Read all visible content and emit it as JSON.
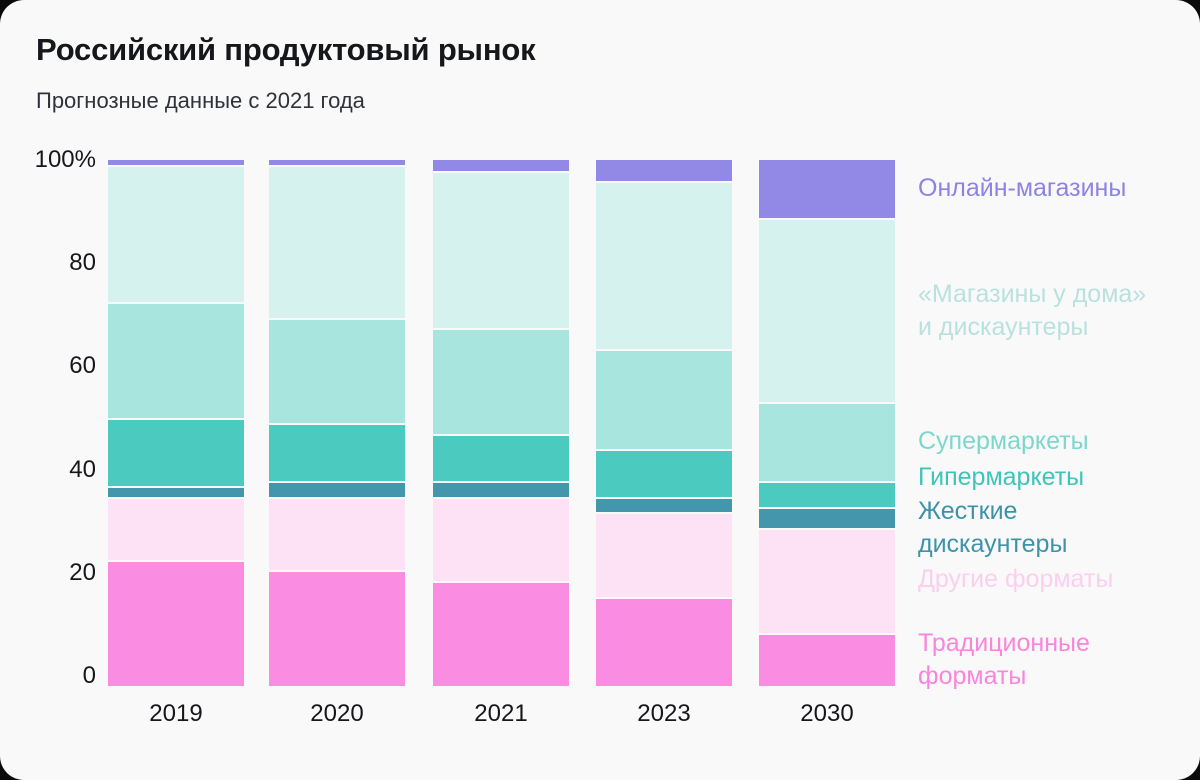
{
  "header": {
    "title": "Российский продуктовый рынок",
    "subtitle": "Прогнозные данные с 2021 года"
  },
  "chart_data": {
    "type": "bar",
    "variant": "stacked-100-percent",
    "title": "Российский продуктовый рынок",
    "subtitle": "Прогнозные данные с 2021 года",
    "categories": [
      "2019",
      "2020",
      "2021",
      "2023",
      "2030"
    ],
    "series": [
      {
        "key": "traditional-formats",
        "name": "Традиционные форматы",
        "color": "#fa8de1",
        "values": [
          24,
          22,
          20,
          17,
          10
        ]
      },
      {
        "key": "other-formats",
        "name": "Другие форматы",
        "color": "#fde2f6",
        "values": [
          12,
          14,
          16,
          16,
          20
        ]
      },
      {
        "key": "hard-discounters",
        "name": "Жесткие дискаунтеры",
        "color": "#4396ab",
        "values": [
          2,
          3,
          3,
          3,
          4
        ]
      },
      {
        "key": "hypermarkets",
        "name": "Гипермаркеты",
        "color": "#4bcbc0",
        "values": [
          13,
          11,
          9,
          9,
          5
        ]
      },
      {
        "key": "supermarkets",
        "name": "Супермаркеты",
        "color": "#a9e5df",
        "values": [
          22,
          20,
          20,
          19,
          15
        ]
      },
      {
        "key": "convenience-discounters",
        "name": "«Магазины у дома» и дискаунтеры",
        "color": "#d5f2ef",
        "values": [
          26,
          29,
          30,
          32,
          35
        ]
      },
      {
        "key": "online-stores",
        "name": "Онлайн-магазины",
        "color": "#9289e6",
        "values": [
          1,
          1,
          2,
          4,
          11
        ]
      }
    ],
    "y_axis": {
      "ticks": [
        "100%",
        "80",
        "60",
        "40",
        "20",
        "0"
      ],
      "tick_values": [
        100,
        80,
        60,
        40,
        20,
        0
      ],
      "range": [
        0,
        100
      ],
      "unit": "%",
      "gridlines": false
    },
    "x_axis": {
      "ticks": [
        "2019",
        "2020",
        "2021",
        "2023",
        "2030"
      ]
    },
    "legend_position": "right",
    "stack_gap_color": "#f9f9fa"
  },
  "legend": {
    "items": [
      {
        "key": "online-stores",
        "label": "Онлайн-магазины",
        "color": "#8d83e4"
      },
      {
        "key": "convenience-discounters",
        "label": "«Магазины у дома»\nи дискаунтеры",
        "color": "#b9e2dc"
      },
      {
        "key": "supermarkets",
        "label": "Супермаркеты",
        "color": "#7cd8cd"
      },
      {
        "key": "hypermarkets",
        "label": "Гипермаркеты",
        "color": "#3ec4b8"
      },
      {
        "key": "hard-discounters",
        "label": "Жесткие\nдискаунтеры",
        "color": "#3e93a9"
      },
      {
        "key": "other-formats",
        "label": "Другие форматы",
        "color": "#fbcfee"
      },
      {
        "key": "traditional-formats",
        "label": "Традиционные\nформаты",
        "color": "#f985dc"
      }
    ]
  }
}
